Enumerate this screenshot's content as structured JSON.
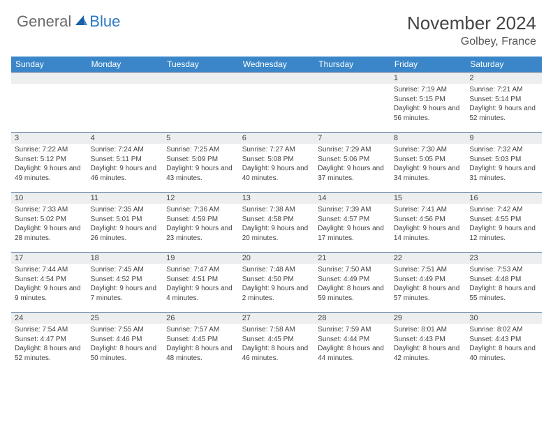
{
  "logo": {
    "general": "General",
    "blue": "Blue"
  },
  "header": {
    "title": "November 2024",
    "location": "Golbey, France"
  },
  "colors": {
    "header_bg": "#3a86c8",
    "header_text": "#ffffff",
    "daynum_bg": "#eceef0",
    "border": "#5a7a9a",
    "logo_gray": "#6a6a6a",
    "logo_blue": "#2b78c4"
  },
  "weekdays": [
    "Sunday",
    "Monday",
    "Tuesday",
    "Wednesday",
    "Thursday",
    "Friday",
    "Saturday"
  ],
  "weeks": [
    [
      {
        "n": "",
        "lines": []
      },
      {
        "n": "",
        "lines": []
      },
      {
        "n": "",
        "lines": []
      },
      {
        "n": "",
        "lines": []
      },
      {
        "n": "",
        "lines": []
      },
      {
        "n": "1",
        "lines": [
          "Sunrise: 7:19 AM",
          "Sunset: 5:15 PM",
          "Daylight: 9 hours and 56 minutes."
        ]
      },
      {
        "n": "2",
        "lines": [
          "Sunrise: 7:21 AM",
          "Sunset: 5:14 PM",
          "Daylight: 9 hours and 52 minutes."
        ]
      }
    ],
    [
      {
        "n": "3",
        "lines": [
          "Sunrise: 7:22 AM",
          "Sunset: 5:12 PM",
          "Daylight: 9 hours and 49 minutes."
        ]
      },
      {
        "n": "4",
        "lines": [
          "Sunrise: 7:24 AM",
          "Sunset: 5:11 PM",
          "Daylight: 9 hours and 46 minutes."
        ]
      },
      {
        "n": "5",
        "lines": [
          "Sunrise: 7:25 AM",
          "Sunset: 5:09 PM",
          "Daylight: 9 hours and 43 minutes."
        ]
      },
      {
        "n": "6",
        "lines": [
          "Sunrise: 7:27 AM",
          "Sunset: 5:08 PM",
          "Daylight: 9 hours and 40 minutes."
        ]
      },
      {
        "n": "7",
        "lines": [
          "Sunrise: 7:29 AM",
          "Sunset: 5:06 PM",
          "Daylight: 9 hours and 37 minutes."
        ]
      },
      {
        "n": "8",
        "lines": [
          "Sunrise: 7:30 AM",
          "Sunset: 5:05 PM",
          "Daylight: 9 hours and 34 minutes."
        ]
      },
      {
        "n": "9",
        "lines": [
          "Sunrise: 7:32 AM",
          "Sunset: 5:03 PM",
          "Daylight: 9 hours and 31 minutes."
        ]
      }
    ],
    [
      {
        "n": "10",
        "lines": [
          "Sunrise: 7:33 AM",
          "Sunset: 5:02 PM",
          "Daylight: 9 hours and 28 minutes."
        ]
      },
      {
        "n": "11",
        "lines": [
          "Sunrise: 7:35 AM",
          "Sunset: 5:01 PM",
          "Daylight: 9 hours and 26 minutes."
        ]
      },
      {
        "n": "12",
        "lines": [
          "Sunrise: 7:36 AM",
          "Sunset: 4:59 PM",
          "Daylight: 9 hours and 23 minutes."
        ]
      },
      {
        "n": "13",
        "lines": [
          "Sunrise: 7:38 AM",
          "Sunset: 4:58 PM",
          "Daylight: 9 hours and 20 minutes."
        ]
      },
      {
        "n": "14",
        "lines": [
          "Sunrise: 7:39 AM",
          "Sunset: 4:57 PM",
          "Daylight: 9 hours and 17 minutes."
        ]
      },
      {
        "n": "15",
        "lines": [
          "Sunrise: 7:41 AM",
          "Sunset: 4:56 PM",
          "Daylight: 9 hours and 14 minutes."
        ]
      },
      {
        "n": "16",
        "lines": [
          "Sunrise: 7:42 AM",
          "Sunset: 4:55 PM",
          "Daylight: 9 hours and 12 minutes."
        ]
      }
    ],
    [
      {
        "n": "17",
        "lines": [
          "Sunrise: 7:44 AM",
          "Sunset: 4:54 PM",
          "Daylight: 9 hours and 9 minutes."
        ]
      },
      {
        "n": "18",
        "lines": [
          "Sunrise: 7:45 AM",
          "Sunset: 4:52 PM",
          "Daylight: 9 hours and 7 minutes."
        ]
      },
      {
        "n": "19",
        "lines": [
          "Sunrise: 7:47 AM",
          "Sunset: 4:51 PM",
          "Daylight: 9 hours and 4 minutes."
        ]
      },
      {
        "n": "20",
        "lines": [
          "Sunrise: 7:48 AM",
          "Sunset: 4:50 PM",
          "Daylight: 9 hours and 2 minutes."
        ]
      },
      {
        "n": "21",
        "lines": [
          "Sunrise: 7:50 AM",
          "Sunset: 4:49 PM",
          "Daylight: 8 hours and 59 minutes."
        ]
      },
      {
        "n": "22",
        "lines": [
          "Sunrise: 7:51 AM",
          "Sunset: 4:49 PM",
          "Daylight: 8 hours and 57 minutes."
        ]
      },
      {
        "n": "23",
        "lines": [
          "Sunrise: 7:53 AM",
          "Sunset: 4:48 PM",
          "Daylight: 8 hours and 55 minutes."
        ]
      }
    ],
    [
      {
        "n": "24",
        "lines": [
          "Sunrise: 7:54 AM",
          "Sunset: 4:47 PM",
          "Daylight: 8 hours and 52 minutes."
        ]
      },
      {
        "n": "25",
        "lines": [
          "Sunrise: 7:55 AM",
          "Sunset: 4:46 PM",
          "Daylight: 8 hours and 50 minutes."
        ]
      },
      {
        "n": "26",
        "lines": [
          "Sunrise: 7:57 AM",
          "Sunset: 4:45 PM",
          "Daylight: 8 hours and 48 minutes."
        ]
      },
      {
        "n": "27",
        "lines": [
          "Sunrise: 7:58 AM",
          "Sunset: 4:45 PM",
          "Daylight: 8 hours and 46 minutes."
        ]
      },
      {
        "n": "28",
        "lines": [
          "Sunrise: 7:59 AM",
          "Sunset: 4:44 PM",
          "Daylight: 8 hours and 44 minutes."
        ]
      },
      {
        "n": "29",
        "lines": [
          "Sunrise: 8:01 AM",
          "Sunset: 4:43 PM",
          "Daylight: 8 hours and 42 minutes."
        ]
      },
      {
        "n": "30",
        "lines": [
          "Sunrise: 8:02 AM",
          "Sunset: 4:43 PM",
          "Daylight: 8 hours and 40 minutes."
        ]
      }
    ]
  ]
}
